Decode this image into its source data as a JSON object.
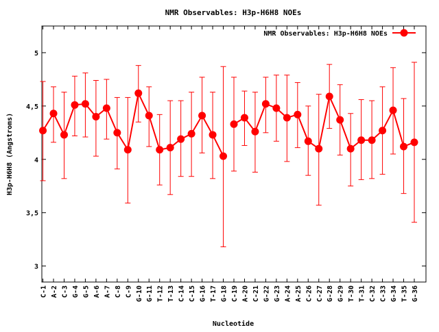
{
  "chart_data": {
    "type": "line",
    "title": "NMR Observables: H3p-H6H8 NOEs",
    "xlabel": "Nucleotide",
    "ylabel": "H3p-H6H8 (Angstroms)",
    "ylim": [
      2.85,
      5.25
    ],
    "yticks": [
      3,
      3.5,
      4,
      4.5,
      5
    ],
    "ytick_labels": [
      "3",
      "3,5",
      "4",
      "4,5",
      "5"
    ],
    "legend": {
      "label": "NMR Observables: H3p-H6H8 NOEs",
      "position": "top-right"
    },
    "series": [
      {
        "name": "NMR Observables: H3p-H6H8 NOEs",
        "color": "#ff0000",
        "segments": [
          [
            {
              "x": 1,
              "label": "C-1",
              "y": 4.27,
              "lo": 3.8,
              "hi": 4.73
            },
            {
              "x": 2,
              "label": "A-2",
              "y": 4.43,
              "lo": 4.16,
              "hi": 4.68
            },
            {
              "x": 3,
              "label": "C-3",
              "y": 4.23,
              "lo": 3.82,
              "hi": 4.63
            },
            {
              "x": 4,
              "label": "G-4",
              "y": 4.51,
              "lo": 4.22,
              "hi": 4.78
            },
            {
              "x": 5,
              "label": "G-5",
              "y": 4.52,
              "lo": 4.21,
              "hi": 4.81
            },
            {
              "x": 6,
              "label": "A-6",
              "y": 4.4,
              "lo": 4.03,
              "hi": 4.74
            },
            {
              "x": 7,
              "label": "A-7",
              "y": 4.48,
              "lo": 4.19,
              "hi": 4.75
            },
            {
              "x": 8,
              "label": "C-8",
              "y": 4.25,
              "lo": 3.91,
              "hi": 4.58
            },
            {
              "x": 9,
              "label": "C-9",
              "y": 4.09,
              "lo": 3.59,
              "hi": 4.58
            },
            {
              "x": 10,
              "label": "G-10",
              "y": 4.62,
              "lo": 4.35,
              "hi": 4.88
            },
            {
              "x": 11,
              "label": "G-11",
              "y": 4.41,
              "lo": 4.12,
              "hi": 4.68
            },
            {
              "x": 12,
              "label": "T-12",
              "y": 4.09,
              "lo": 3.76,
              "hi": 4.42
            },
            {
              "x": 13,
              "label": "T-13",
              "y": 4.11,
              "lo": 3.67,
              "hi": 4.55
            },
            {
              "x": 14,
              "label": "C-14",
              "y": 4.19,
              "lo": 3.84,
              "hi": 4.55
            },
            {
              "x": 15,
              "label": "C-15",
              "y": 4.24,
              "lo": 3.84,
              "hi": 4.63
            },
            {
              "x": 16,
              "label": "G-16",
              "y": 4.41,
              "lo": 4.06,
              "hi": 4.77
            },
            {
              "x": 17,
              "label": "T-17",
              "y": 4.23,
              "lo": 3.82,
              "hi": 4.63
            },
            {
              "x": 18,
              "label": "G-18",
              "y": 4.03,
              "lo": 3.18,
              "hi": 4.87
            }
          ],
          [
            {
              "x": 19,
              "label": "C-19",
              "y": 4.33,
              "lo": 3.89,
              "hi": 4.77
            },
            {
              "x": 20,
              "label": "A-20",
              "y": 4.39,
              "lo": 4.13,
              "hi": 4.64
            },
            {
              "x": 21,
              "label": "C-21",
              "y": 4.26,
              "lo": 3.88,
              "hi": 4.63
            },
            {
              "x": 22,
              "label": "G-22",
              "y": 4.52,
              "lo": 4.25,
              "hi": 4.77
            },
            {
              "x": 23,
              "label": "G-23",
              "y": 4.48,
              "lo": 4.17,
              "hi": 4.79
            },
            {
              "x": 24,
              "label": "A-24",
              "y": 4.39,
              "lo": 3.98,
              "hi": 4.79
            },
            {
              "x": 25,
              "label": "A-25",
              "y": 4.42,
              "lo": 4.11,
              "hi": 4.72
            },
            {
              "x": 26,
              "label": "C-26",
              "y": 4.17,
              "lo": 3.85,
              "hi": 4.5
            },
            {
              "x": 27,
              "label": "C-27",
              "y": 4.1,
              "lo": 3.57,
              "hi": 4.61
            },
            {
              "x": 28,
              "label": "G-28",
              "y": 4.59,
              "lo": 4.29,
              "hi": 4.89
            },
            {
              "x": 29,
              "label": "G-29",
              "y": 4.37,
              "lo": 4.04,
              "hi": 4.7
            },
            {
              "x": 30,
              "label": "T-30",
              "y": 4.1,
              "lo": 3.75,
              "hi": 4.43
            },
            {
              "x": 31,
              "label": "T-31",
              "y": 4.18,
              "lo": 3.81,
              "hi": 4.56
            },
            {
              "x": 32,
              "label": "C-32",
              "y": 4.18,
              "lo": 3.82,
              "hi": 4.55
            },
            {
              "x": 33,
              "label": "C-33",
              "y": 4.27,
              "lo": 3.86,
              "hi": 4.68
            },
            {
              "x": 34,
              "label": "G-34",
              "y": 4.46,
              "lo": 4.05,
              "hi": 4.86
            },
            {
              "x": 35,
              "label": "T-35",
              "y": 4.12,
              "lo": 3.68,
              "hi": 4.57
            },
            {
              "x": 36,
              "label": "G-36",
              "y": 4.16,
              "lo": 3.41,
              "hi": 4.91
            }
          ]
        ]
      }
    ]
  }
}
